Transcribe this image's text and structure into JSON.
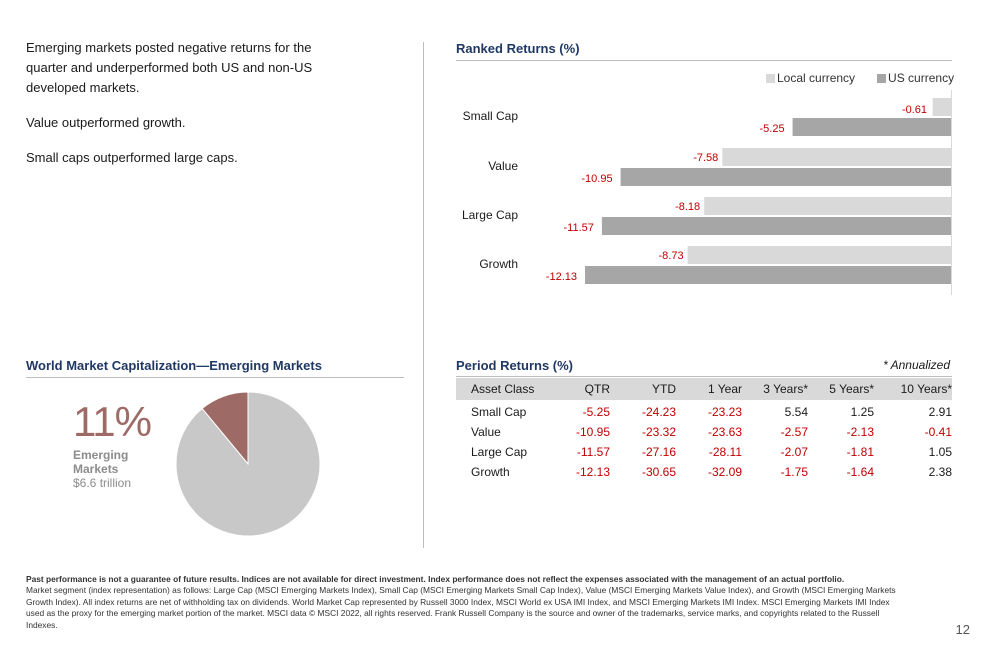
{
  "bullets": [
    "Emerging markets posted negative returns for the quarter and underperformed both US and non-US developed markets.",
    "Value outperformed growth.",
    "Small caps outperformed large caps."
  ],
  "ranked": {
    "title": "Ranked Returns (%)",
    "legend": {
      "local": "Local currency",
      "us": "US currency"
    },
    "colors": {
      "local": "#d9d9d9",
      "us": "#a6a6a6",
      "negative_text": "#c00000"
    }
  },
  "chart_data": [
    {
      "type": "bar",
      "orientation": "horizontal",
      "title": "Ranked Returns (%)",
      "categories": [
        "Small Cap",
        "Value",
        "Large Cap",
        "Growth"
      ],
      "series": [
        {
          "name": "Local currency",
          "values": [
            -0.61,
            -7.58,
            -8.18,
            -8.73
          ]
        },
        {
          "name": "US currency",
          "values": [
            -5.25,
            -10.95,
            -11.57,
            -12.13
          ]
        }
      ],
      "legend": "top-right",
      "xlim": [
        -12.13,
        0
      ]
    },
    {
      "type": "pie",
      "title": "World Market Capitalization—Emerging Markets",
      "slices": [
        {
          "label": "Emerging Markets",
          "value": 11,
          "color": "#9e6a65"
        },
        {
          "label": "",
          "value": 89,
          "color": "#c8c8c8"
        }
      ]
    }
  ],
  "period": {
    "title": "Period Returns (%)",
    "note": "* Annualized",
    "headers": [
      "Asset Class",
      "QTR",
      "YTD",
      "1 Year",
      "3 Years*",
      "5 Years*",
      "10 Years*"
    ],
    "rows": [
      [
        "Small Cap",
        "-5.25",
        "-24.23",
        "-23.23",
        "5.54",
        "1.25",
        "2.91"
      ],
      [
        "Value",
        "-10.95",
        "-23.32",
        "-23.63",
        "-2.57",
        "-2.13",
        "-0.41"
      ],
      [
        "Large Cap",
        "-11.57",
        "-27.16",
        "-28.11",
        "-2.07",
        "-1.81",
        "1.05"
      ],
      [
        "Growth",
        "-12.13",
        "-30.65",
        "-32.09",
        "-1.75",
        "-1.64",
        "2.38"
      ]
    ]
  },
  "worldcap": {
    "title": "World Market Capitalization—Emerging Markets",
    "pct": "11%",
    "label_line1": "Emerging",
    "label_line2": "Markets",
    "value": "$6.6 trillion"
  },
  "footnote": {
    "bold": "Past performance is not a guarantee of future results. Indices are not available for direct investment. Index performance does not reflect the expenses associated with the management of an actual portfolio.",
    "text": "Market segment (index representation) as follows: Large Cap (MSCI Emerging Markets Index), Small Cap (MSCI Emerging Markets Small Cap Index), Value (MSCI Emerging Markets Value Index), and Growth (MSCI Emerging Markets Growth Index). All index returns are net of withholding tax on dividends. World Market Cap represented by Russell 3000 Index, MSCI World ex USA IMI Index, and MSCI Emerging Markets IMI Index. MSCI Emerging Markets IMI Index used as the proxy for the emerging market portion of the market. MSCI data © MSCI 2022, all rights reserved. Frank Russell Company is the source and owner of the trademarks, service marks, and copyrights related to the Russell Indexes."
  },
  "page_number": "12"
}
